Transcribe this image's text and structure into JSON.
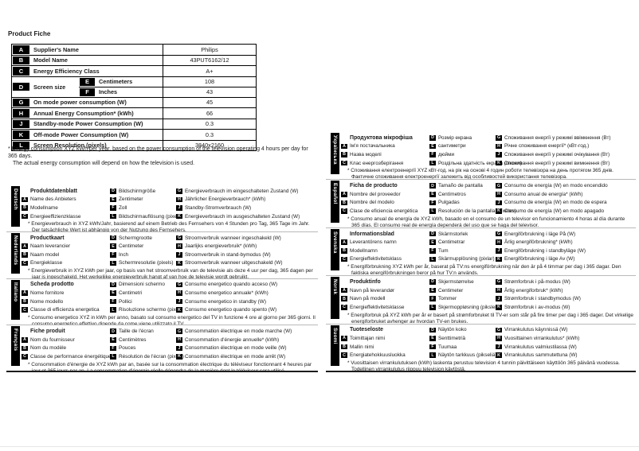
{
  "page": {
    "title": "Product Fiche",
    "table_footnote": "* Energy consumption XYZ kWh per year, based on the power consumption of the television operating 4 hours per day for 365 days.",
    "table_footnote2": "The actual energy consumption will depend on how the television is used."
  },
  "colors": {
    "text": "#1a1a1a",
    "badge_bg": "#000000",
    "separator": "#b9b9b9",
    "bottom_rule": "#1c1c1c"
  },
  "table": {
    "rows": [
      {
        "badge": "A",
        "label": "Supplier's Name",
        "value": "Philips"
      },
      {
        "badge": "B",
        "label": "Model Name",
        "value": "43PUT6162/12"
      },
      {
        "badge": "C",
        "label": "Energy Efficiency Class",
        "value": "A+"
      },
      {
        "badge": "D",
        "label": "Screen size",
        "sub": [
          {
            "badge": "E",
            "label": "Centimeters",
            "value": "108"
          },
          {
            "badge": "F",
            "label": "Inches",
            "value": "43"
          }
        ]
      },
      {
        "badge": "G",
        "label": "On mode power consumption (W)",
        "value": "45"
      },
      {
        "badge": "H",
        "label": "Annual Energy Consumption* (kWh)",
        "value": "66"
      },
      {
        "badge": "J",
        "label": "Standby-mode Power Consumption (W)",
        "value": "0.3"
      },
      {
        "badge": "K",
        "label": "Off-mode Power Consumption (W)",
        "value": "0.3"
      },
      {
        "badge": "L",
        "label": "Screen Resolution (pixels)",
        "value": "3840x2160"
      }
    ]
  },
  "sections": {
    "left": [
      {
        "id": "deutsch",
        "lang": "Deutsch",
        "title": "Produktdatenblatt",
        "col1": [
          [
            "A",
            "Name des Anbieters"
          ],
          [
            "B",
            "Modellname"
          ],
          [
            "C",
            "Energieeffizienzklasse"
          ]
        ],
        "col2": [
          [
            "D",
            "Bildschirmgröße"
          ],
          [
            "E",
            "Zentimeter"
          ],
          [
            "F",
            "Zoll"
          ],
          [
            "L",
            "Bildschirmauflösung (pixel)"
          ]
        ],
        "col3": [
          [
            "G",
            "Energieverbrauch im eingeschalteten Zustand (W)"
          ],
          [
            "H",
            "Jährlicher Energieverbrauch* (kWh)"
          ],
          [
            "J",
            "Standby-Stromverbrauch (W)"
          ],
          [
            "K",
            "Energieverbrauch im ausgeschalteten Zustand (W)"
          ]
        ],
        "footnote": "* Energieverbrauch in XYZ kWh/Jahr, basierend auf einem Betrieb des Fernsehers von 4 Stunden pro Tag, 365 Tage im Jahr. Der tatsächliche Wert ist abhängig von der Nutzung des Fernsehers."
      },
      {
        "id": "nederlands",
        "lang": "Nederlands",
        "title": "Productkaart",
        "col1": [
          [
            "A",
            "Naam leverancier"
          ],
          [
            "B",
            "Naam model"
          ],
          [
            "C",
            "Energieklasse"
          ]
        ],
        "col2": [
          [
            "D",
            "Schermgrootte"
          ],
          [
            "E",
            "Centimeter"
          ],
          [
            "F",
            "Inch"
          ],
          [
            "L",
            "Schermresolutie (pixels)"
          ]
        ],
        "col3": [
          [
            "G",
            "Stroomverbruik wanneer ingeschakeld (W)"
          ],
          [
            "H",
            "Jaarlijks energieverbruik* (kWh)"
          ],
          [
            "J",
            "Stroomverbruik in stand-bymodus (W)"
          ],
          [
            "K",
            "Stroomverbruik wanneer uitgeschakeld (W)"
          ]
        ],
        "footnote": "* Energieverbruik in XYZ kWh per jaar, op basis van het stroomverbruik van de televisie als deze 4 uur per dag, 365 dagen per jaar is ingeschakeld. Het werkelijke energieverbruik hangt af van hoe de televisie wordt gebruikt."
      },
      {
        "id": "italiano",
        "lang": "Italiano",
        "title": "Scheda prodotto",
        "col1": [
          [
            "A",
            "Nome fornitore"
          ],
          [
            "B",
            "Nome modello"
          ],
          [
            "C",
            "Classe di efficienza energetica"
          ]
        ],
        "col2": [
          [
            "D",
            "Dimensioni schermo"
          ],
          [
            "E",
            "Centimetri"
          ],
          [
            "F",
            "Pollici"
          ],
          [
            "L",
            "Risoluzione schermo (pixel)"
          ]
        ],
        "col3": [
          [
            "G",
            "Consumo energetico quando acceso (W)"
          ],
          [
            "H",
            "Consumo energetico annuale* (kWh)"
          ],
          [
            "J",
            "Consumo energetico in standby (W)"
          ],
          [
            "K",
            "Consumo energetico quando spento (W)"
          ]
        ],
        "footnote": "* Consumo energetico XYZ in kWh per anno, basato sul consumo energetico del TV in funzione 4 ore al giorno per 365 giorni. Il consumo energetico effettivo dipende da come viene utilizzato il TV."
      },
      {
        "id": "francais",
        "lang": "Français",
        "title": "Fiche produit",
        "col1": [
          [
            "A",
            "Nom du fournisseur"
          ],
          [
            "B",
            "Nom du modèle"
          ],
          [
            "C",
            "Classe de performance énergétique"
          ]
        ],
        "col2": [
          [
            "D",
            "Taille de l'écran"
          ],
          [
            "E",
            "Centimètres"
          ],
          [
            "F",
            "Pouces"
          ],
          [
            "L",
            "Résolution de l'écran (pixels)"
          ]
        ],
        "col3": [
          [
            "G",
            "Consommation électrique en mode marche (W)"
          ],
          [
            "H",
            "Consommation d'énergie annuelle* (kWh)"
          ],
          [
            "J",
            "Consommation électrique en mode veille (W)"
          ],
          [
            "K",
            "Consommation électrique en mode arrêt (W)"
          ]
        ],
        "footnote": "* Consommation d'énergie de XYZ kWh par an, basée sur la consommation électrique du téléviseur fonctionnant 4 heures par jour et 365 jours par an. La consommation d'énergie réelle dépendra de la manière dont le téléviseur sera utilisé."
      }
    ],
    "right": [
      {
        "id": "ukrainska",
        "lang": "Українська",
        "title": "Продуктова мікрофіша",
        "col1": [
          [
            "A",
            "Ім'я постачальника"
          ],
          [
            "B",
            "Назва моделі"
          ],
          [
            "C",
            "Клас енергозберігання"
          ]
        ],
        "col2": [
          [
            "D",
            "Розмір екрана"
          ],
          [
            "E",
            "сантиметри"
          ],
          [
            "F",
            "дюйми"
          ],
          [
            "L",
            "Роздільна здатність екрана (піксел)"
          ]
        ],
        "col3": [
          [
            "G",
            "Споживання енергії у режимі ввімкнення (Вт)"
          ],
          [
            "H",
            "Річне споживання енергії* (кВт-год.)"
          ],
          [
            "J",
            "Споживання енергії у режимі очікування (Вт)"
          ],
          [
            "K",
            "Споживання енергії у режимі вимкнення (Вт)"
          ]
        ],
        "footnote": "* Споживання електроенергії XYZ кВт-год. на рік на основі 4 годин роботи телевізора на день протягом 365 днів. Фактичне споживання електроенергії залежить від особливостей використання телевізора."
      },
      {
        "id": "espanol",
        "lang": "Español",
        "title": "Ficha de producto",
        "col1": [
          [
            "A",
            "Nombre del proveedor"
          ],
          [
            "B",
            "Nombre del modelo"
          ],
          [
            "C",
            "Clase de eficiencia energética"
          ]
        ],
        "col2": [
          [
            "D",
            "Tamaño de pantalla"
          ],
          [
            "E",
            "Centímetros"
          ],
          [
            "F",
            "Pulgadas"
          ],
          [
            "L",
            "Resolución de la pantalla (píxeles)"
          ]
        ],
        "col3": [
          [
            "G",
            "Consumo de energía (W) en modo encendido"
          ],
          [
            "H",
            "Consumo anual de energía* (kWh)"
          ],
          [
            "J",
            "Consumo de energía (W) en modo de espera"
          ],
          [
            "K",
            "Consumo de energía (W) en modo apagado"
          ]
        ],
        "footnote": "* Consumo anual de energía de XYZ kWh, basado en el consumo de un televisor en funcionamiento 4 horas al día durante 365 días. El consumo real de energía dependerá del uso que se haga del televisor."
      },
      {
        "id": "svenska",
        "lang": "Svenska",
        "title": "Informationsblad",
        "col1": [
          [
            "A",
            "Leverantörens namn"
          ],
          [
            "B",
            "Modellnamn"
          ],
          [
            "C",
            "Energieffektivitetsklass"
          ]
        ],
        "col2": [
          [
            "D",
            "Skärmstorlek"
          ],
          [
            "E",
            "Centimetrar"
          ],
          [
            "F",
            "Tum"
          ],
          [
            "L",
            "Skärmupplösning (pixlar)"
          ]
        ],
        "col3": [
          [
            "G",
            "Energiförbrukning i läge På (W)"
          ],
          [
            "H",
            "Årlig energiförbrukning* (kWh)"
          ],
          [
            "J",
            "Energiförbrukning i standbyläge (W)"
          ],
          [
            "K",
            "Energiförbrukning i läge Av (W)"
          ]
        ],
        "footnote": "* Energiförbrukning XYZ kWh per år, baserat på TV:ns energiförbrukning när den är på 4 timmar per dag i 365 dagar. Den faktiska energiförbrukningen beror på hur TV:n används."
      },
      {
        "id": "norsk",
        "lang": "Norsk",
        "title": "Produktinfo",
        "col1": [
          [
            "A",
            "Navn på leverandør"
          ],
          [
            "B",
            "Navn på modell"
          ],
          [
            "C",
            "Energieffektivitetsklasse"
          ]
        ],
        "col2": [
          [
            "D",
            "Skjermstørrelse"
          ],
          [
            "E",
            "Centimeter"
          ],
          [
            "F",
            "Tommer"
          ],
          [
            "L",
            "Skjermoppløsning (piksler)"
          ]
        ],
        "col3": [
          [
            "G",
            "Strømforbruk i på-modus (W)"
          ],
          [
            "H",
            "Årlig energiforbruk* (kWh)"
          ],
          [
            "J",
            "Strømforbruk i standbymodus (W)"
          ],
          [
            "K",
            "Strømforbruk i av-modus (W)"
          ]
        ],
        "footnote": "* Energiforbruk på XYZ kWh per år er basert på strømforbruket til TV-er som står på fire timer per dag i 365 dager. Det virkelige energiforbruket avhenger av hvordan TV-en brukes."
      },
      {
        "id": "suomi",
        "lang": "Suomi",
        "title": "Tuoteseloste",
        "col1": [
          [
            "A",
            "Toimittajan nimi"
          ],
          [
            "B",
            "Mallin nimi"
          ],
          [
            "C",
            "Energiatehokkuusluokka"
          ]
        ],
        "col2": [
          [
            "D",
            "Näytön koko"
          ],
          [
            "E",
            "Senttimetriä"
          ],
          [
            "F",
            "Tuumaa"
          ],
          [
            "L",
            "Näytön tarkkuus (pikseliä)"
          ]
        ],
        "col3": [
          [
            "G",
            "Virrankulutus käynnissä (W)"
          ],
          [
            "H",
            "Vuosittainen virrankulutus* (kWh)"
          ],
          [
            "J",
            "Virrankulutus valmiustilassa (W)"
          ],
          [
            "K",
            "Virrankulutus sammutettuna (W)"
          ]
        ],
        "footnote": "* Vuosittaisen virrankulutuksen (kWh) laskenta perustuu television 4 tunnin päivittäiseen käyttöön 365 päivänä vuodessa. Todellinen virrankulutus riippuu television käytöstä."
      }
    ]
  }
}
